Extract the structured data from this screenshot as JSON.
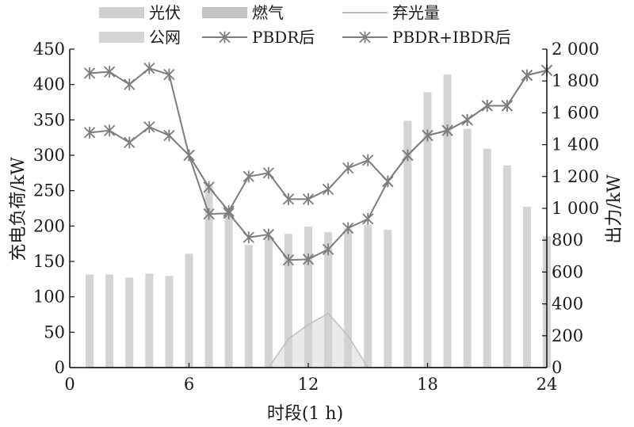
{
  "chart_data": {
    "type": "bar",
    "x": [
      1,
      2,
      3,
      4,
      5,
      6,
      7,
      8,
      9,
      10,
      11,
      12,
      13,
      14,
      15,
      16,
      17,
      18,
      19,
      20,
      21,
      22,
      23,
      24
    ],
    "xlabel": "时段(1 h)",
    "ylabel_left": "充电负荷/kW",
    "ylabel_right": "出力/kW",
    "xlim": [
      0,
      24
    ],
    "xticks": [
      "0",
      "6",
      "12",
      "18",
      "24"
    ],
    "ylim_left": [
      0,
      450
    ],
    "yticks_left": [
      "0",
      "50",
      "100",
      "150",
      "200",
      "250",
      "300",
      "350",
      "400",
      "450"
    ],
    "ylim_right": [
      0,
      2000
    ],
    "yticks_right": [
      "0",
      "200",
      "400",
      "600",
      "800",
      "1 000",
      "1 200",
      "1 400",
      "1 600",
      "1 800",
      "2 000"
    ],
    "grid": false,
    "legend_position": "top",
    "series": [
      {
        "name": "光伏",
        "kind": "area",
        "axis": "right",
        "color": "#d0d0d0",
        "values": [
          0,
          0,
          0,
          0,
          0,
          0,
          0,
          0,
          0,
          0,
          180,
          270,
          340,
          200,
          0,
          0,
          0,
          0,
          0,
          0,
          0,
          0,
          0,
          0
        ]
      },
      {
        "name": "燃气",
        "kind": "bar",
        "axis": "right",
        "color": "#c4c4c4",
        "values": [
          0,
          0,
          0,
          0,
          0,
          0,
          0,
          0,
          0,
          0,
          0,
          0,
          0,
          0,
          0,
          0,
          0,
          0,
          0,
          0,
          0,
          0,
          0,
          0
        ]
      },
      {
        "name": "弃光量",
        "kind": "line",
        "axis": "right",
        "color": "#a8a8a8",
        "values": [
          0,
          0,
          0,
          0,
          0,
          0,
          0,
          0,
          0,
          0,
          0,
          0,
          0,
          0,
          0,
          0,
          0,
          0,
          0,
          0,
          0,
          0,
          0,
          0
        ]
      },
      {
        "name": "公网",
        "kind": "bar",
        "axis": "right",
        "color": "#d4d4d4",
        "values": [
          585,
          585,
          565,
          590,
          575,
          715,
          1150,
          950,
          770,
          820,
          840,
          885,
          850,
          875,
          895,
          865,
          1550,
          1730,
          1840,
          1500,
          1375,
          1270,
          1010,
          825
        ]
      },
      {
        "name": "PBDR后",
        "kind": "line",
        "axis": "left",
        "color": "#7d7d7d",
        "values": [
          332,
          335,
          318,
          340,
          328,
          300,
          217,
          218,
          184,
          188,
          152,
          153,
          167,
          197,
          210,
          263,
          300,
          328,
          335,
          350,
          370,
          370,
          413,
          420
        ]
      },
      {
        "name": "PBDR+IBDR后",
        "kind": "line",
        "axis": "left",
        "color": "#7d7d7d",
        "values": [
          416,
          418,
          400,
          423,
          414,
          300,
          255,
          221,
          270,
          275,
          238,
          238,
          252,
          282,
          293,
          263,
          300,
          328,
          335,
          350,
          370,
          370,
          413,
          420
        ]
      }
    ]
  }
}
